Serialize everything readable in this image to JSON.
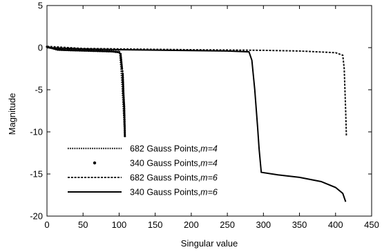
{
  "chart_data": {
    "type": "line",
    "xlabel": "Singular value",
    "ylabel": "Magnitude",
    "xlim": [
      0,
      450
    ],
    "ylim": [
      -20,
      5
    ],
    "x_ticks": [
      0,
      50,
      100,
      150,
      200,
      250,
      300,
      350,
      400,
      450
    ],
    "y_ticks": [
      5,
      0,
      -5,
      -10,
      -15,
      -20
    ],
    "grid": false,
    "legend_position": "bottom-left",
    "series": [
      {
        "name": "682 Gauss Points,",
        "name_suffix": "m=4",
        "style": "dotted-line",
        "points": [
          [
            0,
            0.0
          ],
          [
            20,
            -0.15
          ],
          [
            50,
            -0.22
          ],
          [
            80,
            -0.27
          ],
          [
            100,
            -0.3
          ],
          [
            101,
            -0.8
          ],
          [
            102,
            -1.8
          ],
          [
            103,
            -3.0
          ],
          [
            104,
            -4.5
          ],
          [
            105,
            -6.0
          ],
          [
            106,
            -7.5
          ],
          [
            107,
            -9.0
          ],
          [
            108,
            -10.5
          ]
        ]
      },
      {
        "name": "340 Gauss Points,",
        "name_suffix": "m=4",
        "style": "markers",
        "points": [
          [
            0,
            0.1
          ],
          [
            15,
            -0.25
          ],
          [
            30,
            -0.3
          ],
          [
            50,
            -0.35
          ],
          [
            70,
            -0.4
          ],
          [
            90,
            -0.45
          ],
          [
            100,
            -0.55
          ],
          [
            102,
            -0.75
          ],
          [
            104,
            -2.5
          ],
          [
            105,
            -3.1
          ],
          [
            106,
            -5.5
          ],
          [
            107,
            -7.0
          ],
          [
            108,
            -10.5
          ]
        ]
      },
      {
        "name": "682 Gauss Points,",
        "name_suffix": "m=6",
        "style": "dashed-line",
        "points": [
          [
            0,
            0.15
          ],
          [
            50,
            -0.1
          ],
          [
            100,
            -0.15
          ],
          [
            150,
            -0.2
          ],
          [
            200,
            -0.25
          ],
          [
            250,
            -0.28
          ],
          [
            300,
            -0.32
          ],
          [
            350,
            -0.4
          ],
          [
            400,
            -0.6
          ],
          [
            410,
            -0.9
          ],
          [
            412,
            -2.5
          ],
          [
            413,
            -5.0
          ],
          [
            414,
            -7.5
          ],
          [
            415,
            -10.5
          ]
        ]
      },
      {
        "name": "340 Gauss Points,",
        "name_suffix": "m=6",
        "style": "solid-line",
        "points": [
          [
            0,
            0.0
          ],
          [
            50,
            -0.15
          ],
          [
            100,
            -0.25
          ],
          [
            150,
            -0.3
          ],
          [
            200,
            -0.35
          ],
          [
            250,
            -0.4
          ],
          [
            280,
            -0.5
          ],
          [
            284,
            -1.5
          ],
          [
            288,
            -5.0
          ],
          [
            292,
            -9.5
          ],
          [
            294,
            -12.0
          ],
          [
            297,
            -14.8
          ],
          [
            320,
            -15.1
          ],
          [
            350,
            -15.4
          ],
          [
            380,
            -15.9
          ],
          [
            400,
            -16.6
          ],
          [
            410,
            -17.3
          ],
          [
            414,
            -18.3
          ]
        ]
      }
    ]
  }
}
